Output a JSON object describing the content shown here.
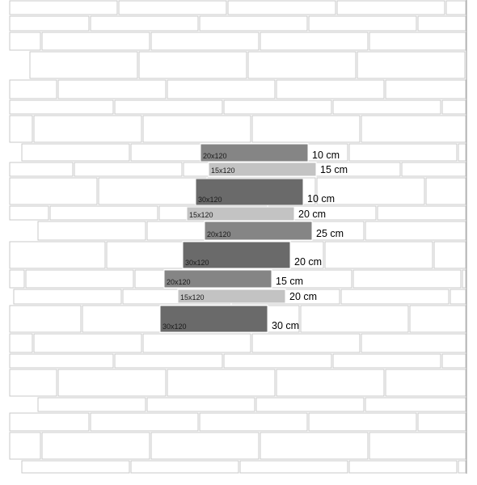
{
  "colors": {
    "background": "#ffffff",
    "brick_fill": "#ffffff",
    "brick_stroke": "#c9c9c9",
    "tile_dark": "#6a6a6a",
    "tile_medium": "#858585",
    "tile_light": "#c3c3c3"
  },
  "highlighted_tiles": [
    {
      "size": "20x120",
      "shade": "medium",
      "offset": "10 cm"
    },
    {
      "size": "15x120",
      "shade": "light",
      "offset": "15 cm"
    },
    {
      "size": "30x120",
      "shade": "dark",
      "offset": "10 cm"
    },
    {
      "size": "15x120",
      "shade": "light",
      "offset": "20 cm"
    },
    {
      "size": "20x120",
      "shade": "medium",
      "offset": "25 cm"
    },
    {
      "size": "30x120",
      "shade": "dark",
      "offset": "20 cm"
    },
    {
      "size": "20x120",
      "shade": "medium",
      "offset": "15 cm"
    },
    {
      "size": "15x120",
      "shade": "light",
      "offset": "20 cm"
    },
    {
      "size": "30x120",
      "shade": "dark",
      "offset": "30 cm"
    }
  ]
}
